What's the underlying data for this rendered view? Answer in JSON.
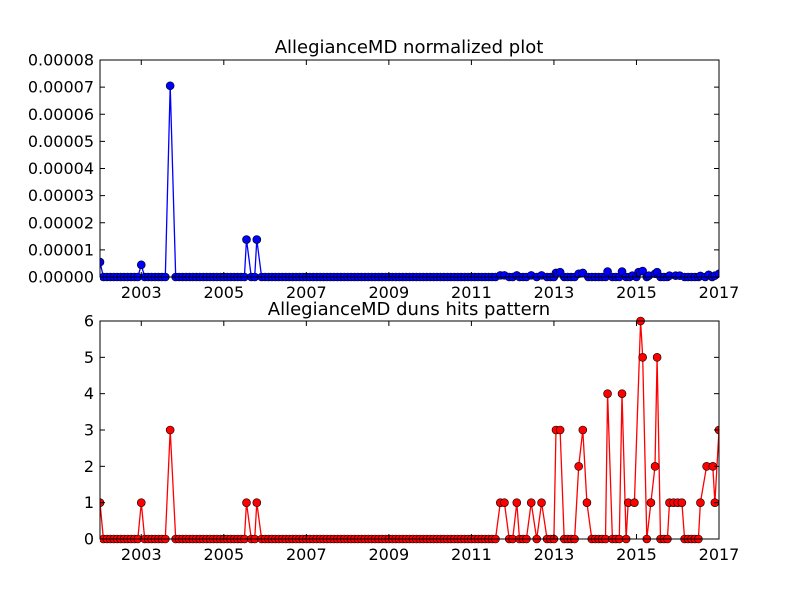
{
  "chart_data": [
    {
      "type": "line",
      "title": "AllegianceMD normalized plot",
      "xlabel": "",
      "ylabel": "",
      "xlim": [
        2002.0,
        2017.0
      ],
      "ylim": [
        0,
        8e-05
      ],
      "x_ticks": [
        2003,
        2005,
        2007,
        2009,
        2011,
        2013,
        2015,
        2017
      ],
      "y_ticks": [
        "0.00000",
        "0.00001",
        "0.00002",
        "0.00003",
        "0.00004",
        "0.00005",
        "0.00006",
        "0.00007",
        "0.00008"
      ],
      "y_tick_values": [
        0,
        1e-05,
        2e-05,
        3e-05,
        4e-05,
        5e-05,
        6e-05,
        7e-05,
        8e-05
      ],
      "grid": false,
      "color": "#0000ff",
      "marker": "circle",
      "series": [
        {
          "points": [
            [
              2002.0,
              5.5e-06
            ],
            [
              2003.0,
              4.5e-06
            ],
            [
              2003.7,
              7.05e-05
            ],
            [
              2005.55,
              1.38e-05
            ],
            [
              2005.8,
              1.38e-05
            ],
            [
              2011.7,
              6e-07
            ],
            [
              2011.8,
              6e-07
            ],
            [
              2012.1,
              6e-07
            ],
            [
              2012.45,
              6e-07
            ],
            [
              2012.7,
              6e-07
            ],
            [
              2013.05,
              1.5e-06
            ],
            [
              2013.15,
              1.8e-06
            ],
            [
              2013.6,
              1.2e-06
            ],
            [
              2013.7,
              1.5e-06
            ],
            [
              2014.3,
              2e-06
            ],
            [
              2014.65,
              2e-06
            ],
            [
              2014.9,
              5e-07
            ],
            [
              2015.05,
              1.8e-06
            ],
            [
              2015.15,
              2.2e-06
            ],
            [
              2015.3,
              5e-07
            ],
            [
              2015.45,
              1.2e-06
            ],
            [
              2015.5,
              1.8e-06
            ],
            [
              2015.8,
              5e-07
            ],
            [
              2015.95,
              5e-07
            ],
            [
              2016.05,
              5e-07
            ],
            [
              2016.55,
              4e-07
            ],
            [
              2016.75,
              8e-07
            ],
            [
              2016.9,
              5e-07
            ],
            [
              2017.0,
              1.2e-06
            ]
          ]
        }
      ]
    },
    {
      "type": "line",
      "title": "AllegianceMD duns hits pattern",
      "xlabel": "",
      "ylabel": "",
      "xlim": [
        2002.0,
        2017.0
      ],
      "ylim": [
        0,
        6
      ],
      "x_ticks": [
        2003,
        2005,
        2007,
        2009,
        2011,
        2013,
        2015,
        2017
      ],
      "y_ticks": [
        "0",
        "1",
        "2",
        "3",
        "4",
        "5",
        "6"
      ],
      "y_tick_values": [
        0,
        1,
        2,
        3,
        4,
        5,
        6
      ],
      "grid": false,
      "color": "#ff0000",
      "marker": "circle",
      "series": [
        {
          "points": [
            [
              2002.0,
              1
            ],
            [
              2003.0,
              1
            ],
            [
              2003.7,
              3
            ],
            [
              2005.55,
              1
            ],
            [
              2005.8,
              1
            ],
            [
              2011.7,
              1
            ],
            [
              2011.8,
              1
            ],
            [
              2012.1,
              1
            ],
            [
              2012.45,
              1
            ],
            [
              2012.7,
              1
            ],
            [
              2013.05,
              3
            ],
            [
              2013.15,
              3
            ],
            [
              2013.6,
              2
            ],
            [
              2013.7,
              3
            ],
            [
              2013.8,
              1
            ],
            [
              2014.3,
              4
            ],
            [
              2014.65,
              4
            ],
            [
              2014.8,
              1
            ],
            [
              2014.95,
              1
            ],
            [
              2015.1,
              6
            ],
            [
              2015.15,
              5
            ],
            [
              2015.35,
              1
            ],
            [
              2015.45,
              2
            ],
            [
              2015.5,
              5
            ],
            [
              2015.8,
              1
            ],
            [
              2015.9,
              1
            ],
            [
              2016.0,
              1
            ],
            [
              2016.1,
              1
            ],
            [
              2016.55,
              1
            ],
            [
              2016.7,
              2
            ],
            [
              2016.85,
              2
            ],
            [
              2016.9,
              1
            ],
            [
              2017.0,
              3
            ]
          ]
        }
      ]
    }
  ]
}
